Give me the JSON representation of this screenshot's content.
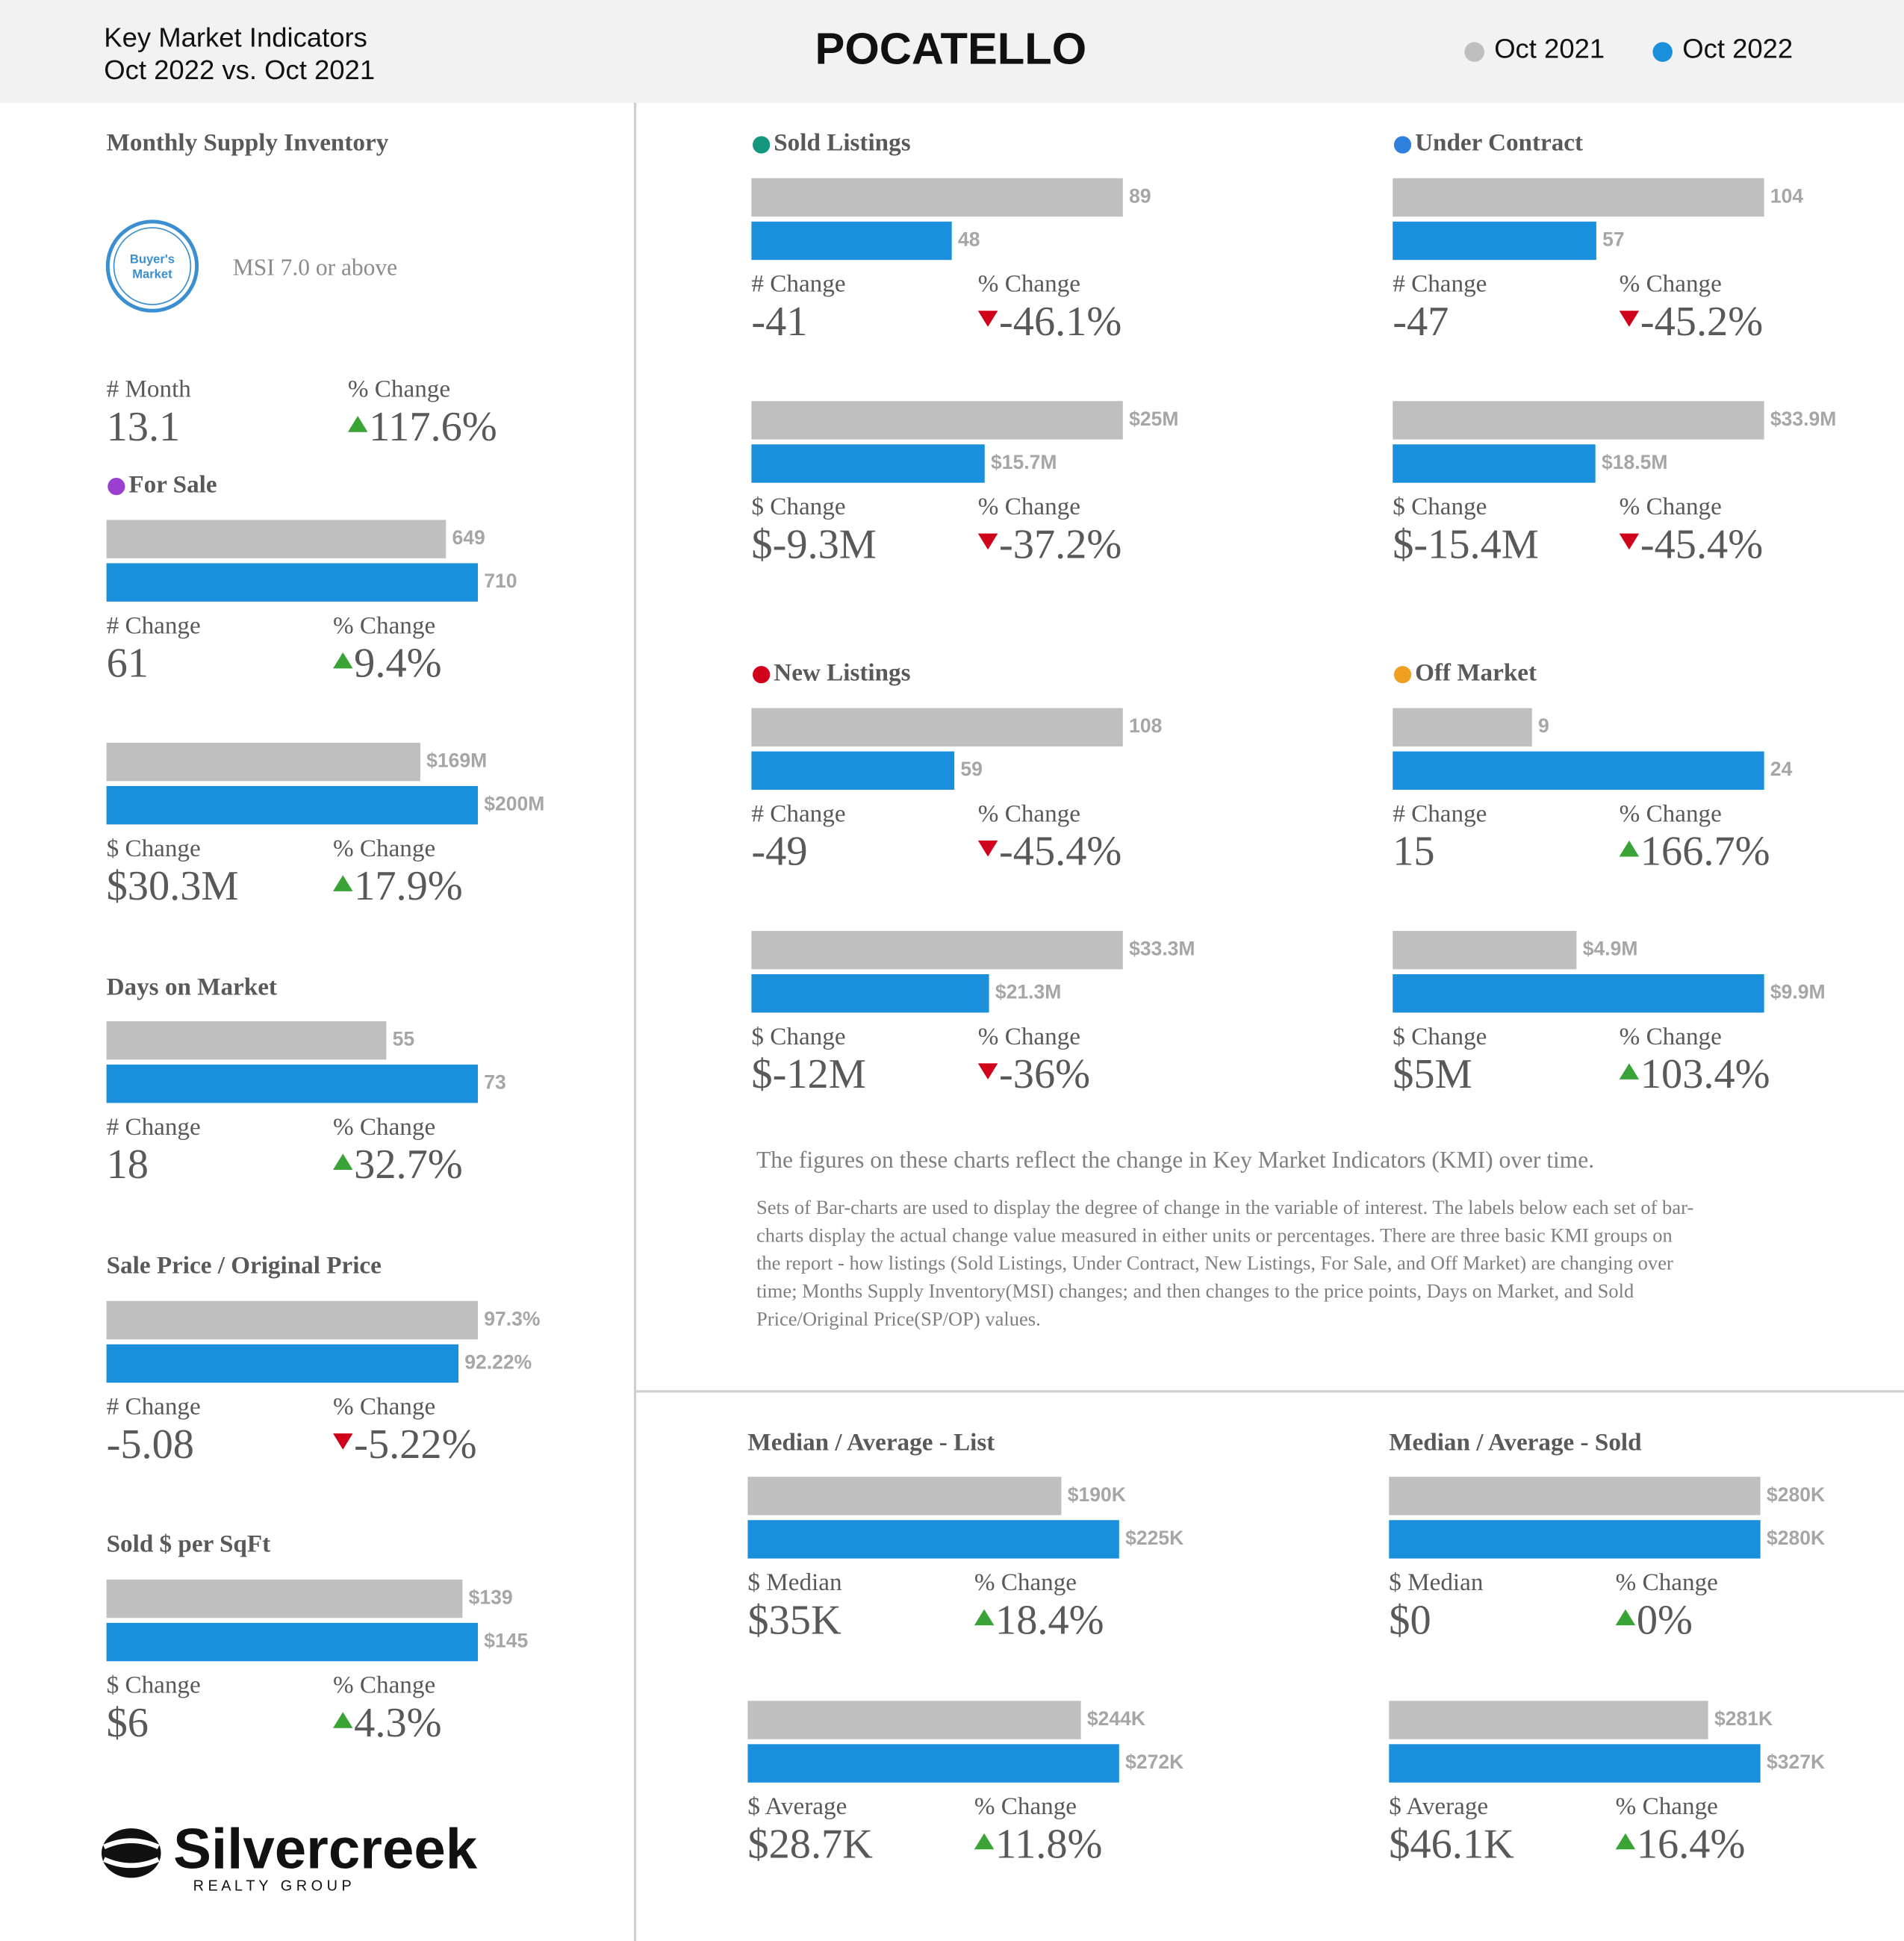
{
  "header": {
    "title": "POCATELLO",
    "subtitle": [
      "Key Market Indicators",
      "Oct 2022 vs. Oct 2021"
    ],
    "legend": [
      {
        "name": "Oct 2021",
        "color": "#bfbfbf"
      },
      {
        "name": "Oct 2022",
        "color": "#1a8fdb"
      }
    ]
  },
  "trend_colors": {
    "up": "#3aa335",
    "down": "#d0021b"
  },
  "msi": {
    "title": "Monthly Supply Inventory",
    "badge": [
      "Buyer's",
      "Market"
    ],
    "note": "MSI 7.0 or above",
    "stats": [
      {
        "label": "# Month",
        "value": "13.1"
      },
      {
        "label": "% Change",
        "value": "117.6%",
        "trend": "up"
      }
    ]
  },
  "sections": [
    {
      "title": "For Sale",
      "dot": "#9b3fd1"
    },
    {
      "title": "Days on Market"
    },
    {
      "title": "Sale Price / Original Price"
    },
    {
      "title": "Sold $ per SqFt"
    },
    {
      "title": "Sold Listings",
      "dot": "#14967f"
    },
    {
      "title": "Under Contract",
      "dot": "#2f7fdc"
    },
    {
      "title": "New Listings",
      "dot": "#d0021b"
    },
    {
      "title": "Off Market",
      "dot": "#f0a020"
    },
    {
      "title": "Median / Average - List"
    },
    {
      "title": "Median / Average - Sold"
    }
  ],
  "chart_data": [
    {
      "type": "bar",
      "values": [
        649,
        710
      ],
      "value_labels": [
        "649",
        "710"
      ],
      "stats": [
        {
          "label": "# Change",
          "value": "61"
        },
        {
          "label": "% Change",
          "value": "9.4%",
          "trend": "up"
        }
      ]
    },
    {
      "type": "bar",
      "values": [
        169000000,
        200000000
      ],
      "value_labels": [
        "$169M",
        "$200M"
      ],
      "stats": [
        {
          "label": "$ Change",
          "value": "$30.3M"
        },
        {
          "label": "% Change",
          "value": "17.9%",
          "trend": "up"
        }
      ]
    },
    {
      "type": "bar",
      "values": [
        55,
        73
      ],
      "value_labels": [
        "55",
        "73"
      ],
      "stats": [
        {
          "label": "# Change",
          "value": "18"
        },
        {
          "label": "% Change",
          "value": "32.7%",
          "trend": "up"
        }
      ]
    },
    {
      "type": "bar",
      "values": [
        97.3,
        92.22
      ],
      "value_labels": [
        "97.3%",
        "92.22%"
      ],
      "stats": [
        {
          "label": "# Change",
          "value": "-5.08"
        },
        {
          "label": "% Change",
          "value": "-5.22%",
          "trend": "down"
        }
      ]
    },
    {
      "type": "bar",
      "values": [
        139,
        145
      ],
      "value_labels": [
        "$139",
        "$145"
      ],
      "stats": [
        {
          "label": "$ Change",
          "value": "$6"
        },
        {
          "label": "% Change",
          "value": "4.3%",
          "trend": "up"
        }
      ]
    },
    {
      "type": "bar",
      "values": [
        89,
        48
      ],
      "value_labels": [
        "89",
        "48"
      ],
      "stats": [
        {
          "label": "# Change",
          "value": "-41"
        },
        {
          "label": "% Change",
          "value": "-46.1%",
          "trend": "down"
        }
      ]
    },
    {
      "type": "bar",
      "values": [
        25000000,
        15700000
      ],
      "value_labels": [
        "$25M",
        "$15.7M"
      ],
      "stats": [
        {
          "label": "$ Change",
          "value": "$-9.3M"
        },
        {
          "label": "% Change",
          "value": "-37.2%",
          "trend": "down"
        }
      ]
    },
    {
      "type": "bar",
      "values": [
        104,
        57
      ],
      "value_labels": [
        "104",
        "57"
      ],
      "stats": [
        {
          "label": "# Change",
          "value": "-47"
        },
        {
          "label": "% Change",
          "value": "-45.2%",
          "trend": "down"
        }
      ]
    },
    {
      "type": "bar",
      "values": [
        33900000,
        18500000
      ],
      "value_labels": [
        "$33.9M",
        "$18.5M"
      ],
      "stats": [
        {
          "label": "$ Change",
          "value": "$-15.4M"
        },
        {
          "label": "% Change",
          "value": "-45.4%",
          "trend": "down"
        }
      ]
    },
    {
      "type": "bar",
      "values": [
        108,
        59
      ],
      "value_labels": [
        "108",
        "59"
      ],
      "stats": [
        {
          "label": "# Change",
          "value": "-49"
        },
        {
          "label": "% Change",
          "value": "-45.4%",
          "trend": "down"
        }
      ]
    },
    {
      "type": "bar",
      "values": [
        33300000,
        21300000
      ],
      "value_labels": [
        "$33.3M",
        "$21.3M"
      ],
      "stats": [
        {
          "label": "$ Change",
          "value": "$-12M"
        },
        {
          "label": "% Change",
          "value": "-36%",
          "trend": "down"
        }
      ]
    },
    {
      "type": "bar",
      "values": [
        9,
        24
      ],
      "value_labels": [
        "9",
        "24"
      ],
      "stats": [
        {
          "label": "# Change",
          "value": "15"
        },
        {
          "label": "% Change",
          "value": "166.7%",
          "trend": "up"
        }
      ]
    },
    {
      "type": "bar",
      "values": [
        4900000,
        9900000
      ],
      "value_labels": [
        "$4.9M",
        "$9.9M"
      ],
      "stats": [
        {
          "label": "$ Change",
          "value": "$5M"
        },
        {
          "label": "% Change",
          "value": "103.4%",
          "trend": "up"
        }
      ]
    },
    {
      "type": "bar",
      "values": [
        190000,
        225000
      ],
      "value_labels": [
        "$190K",
        "$225K"
      ],
      "stats": [
        {
          "label": "$ Median",
          "value": "$35K"
        },
        {
          "label": "% Change",
          "value": "18.4%",
          "trend": "up"
        }
      ]
    },
    {
      "type": "bar",
      "values": [
        244000,
        272000
      ],
      "value_labels": [
        "$244K",
        "$272K"
      ],
      "stats": [
        {
          "label": "$ Average",
          "value": "$28.7K"
        },
        {
          "label": "% Change",
          "value": "11.8%",
          "trend": "up"
        }
      ]
    },
    {
      "type": "bar",
      "values": [
        280000,
        280000
      ],
      "value_labels": [
        "$280K",
        "$280K"
      ],
      "stats": [
        {
          "label": "$ Median",
          "value": "$0"
        },
        {
          "label": "% Change",
          "value": "0%",
          "trend": "up"
        }
      ]
    },
    {
      "type": "bar",
      "values": [
        281000,
        327000
      ],
      "value_labels": [
        "$281K",
        "$327K"
      ],
      "stats": [
        {
          "label": "$ Average",
          "value": "$46.1K"
        },
        {
          "label": "% Change",
          "value": "16.4%",
          "trend": "up"
        }
      ]
    }
  ],
  "note": {
    "heading": "The figures on these charts reflect the change in Key Market Indicators (KMI) over time.",
    "body": [
      "Sets of Bar-charts are used to display the degree of change in the variable of interest. The labels below each set of bar-",
      "charts display the actual change value measured in either units or percentages. There are three basic KMI groups on",
      "the report - how listings (Sold Listings, Under Contract, New Listings, For Sale, and Off Market) are changing over",
      "time; Months Supply Inventory(MSI) changes; and then changes to the price points, Days on Market, and Sold",
      "Price/Original Price(SP/OP) values."
    ]
  },
  "logo": {
    "name": "Silvercreek",
    "tagline": "R E A L T Y   G R O U P"
  }
}
